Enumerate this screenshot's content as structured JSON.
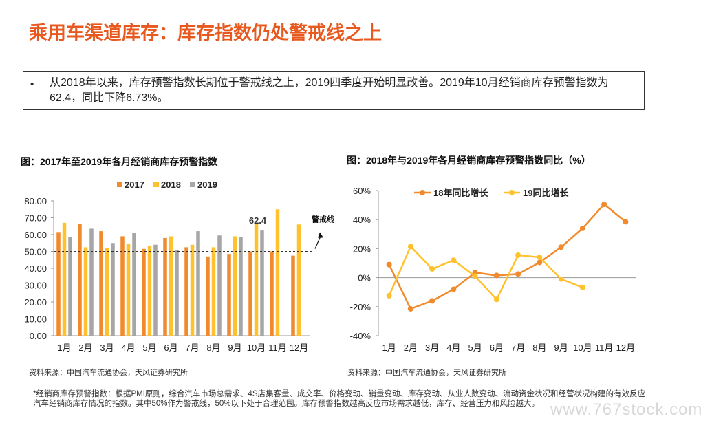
{
  "page": {
    "title": "乘用车渠道库存：库存指数仍处警戒线之上",
    "bullet": "•",
    "summary": "从2018年以来，库存预警指数长期位于警戒线之上，2019四季度开始明显改善。2019年10月经销商库存预警指数为62.4，同比下降6.73%。",
    "footnote": "*经销商库存预警指数：根据PMI原则，综合汽车市场总需求、4S店集客量、成交率、价格变动、销量变动、库存变动、从业人数变动、流动资金状况和经营状况构建的有效反应汽车经销商库存情况的指数。其中50%作为警戒线，50%以下处于合理范围。库存预警指数越高反应市场需求越低，库存、经营压力和风险越大。",
    "watermark": "www.767stock.com"
  },
  "chart_data": [
    {
      "type": "bar",
      "title": "图：2017年至2019年各月经销商库存预警指数",
      "categories": [
        "1月",
        "2月",
        "3月",
        "4月",
        "5月",
        "6月",
        "7月",
        "8月",
        "9月",
        "10月",
        "11月",
        "12月"
      ],
      "series": [
        {
          "name": "2017",
          "color": "#f08a2c",
          "values": [
            61.5,
            66.5,
            62,
            59,
            51.5,
            58,
            52.5,
            47,
            48.5,
            50,
            50,
            47.5
          ]
        },
        {
          "name": "2018",
          "color": "#ffc22e",
          "values": [
            67,
            52.5,
            52,
            54.5,
            53.5,
            59,
            54,
            52.5,
            59,
            67,
            75,
            66
          ]
        },
        {
          "name": "2019",
          "color": "#a6a6a6",
          "values": [
            58.5,
            63.5,
            55,
            61,
            54,
            51,
            62,
            59.5,
            58.5,
            62.4,
            null,
            null
          ]
        }
      ],
      "ylim": [
        0,
        80
      ],
      "yticks": [
        "0.00",
        "10.00",
        "20.00",
        "30.00",
        "40.00",
        "50.00",
        "60.00",
        "70.00",
        "80.00"
      ],
      "reference_line": {
        "value": 50,
        "label": "警戒线"
      },
      "annotation": {
        "text": "62.4",
        "category": "10月"
      },
      "source": "资料来源：中国汽车流通协会，天风证券研究所"
    },
    {
      "type": "line",
      "title": "图：2018年与2019年各月经销商库存预警指数同比（%）",
      "categories": [
        "1月",
        "2月",
        "3月",
        "4月",
        "5月",
        "6月",
        "7月",
        "8月",
        "9月",
        "10月",
        "11月",
        "12月"
      ],
      "series": [
        {
          "name": "18年同比增长",
          "color": "#f08a2c",
          "values": [
            9,
            -21.5,
            -16,
            -8,
            3.5,
            1.5,
            2.5,
            10.5,
            21,
            34,
            50.5,
            38.5
          ]
        },
        {
          "name": "19同比增长",
          "color": "#ffc22e",
          "values": [
            -12.5,
            21.5,
            6,
            12,
            1,
            -15,
            15.5,
            14,
            -1,
            -6.73,
            null,
            null
          ]
        }
      ],
      "ylim": [
        -40,
        60
      ],
      "yticks": [
        "-40%",
        "-20%",
        "0%",
        "20%",
        "40%",
        "60%"
      ],
      "source": "资料来源：中国汽车流通协会，天风证券研究所"
    }
  ]
}
